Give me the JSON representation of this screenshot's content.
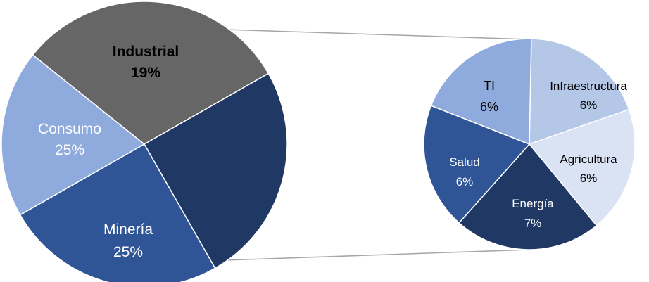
{
  "chart_data": {
    "type": "bar-of-pie",
    "main_pie": {
      "slices": [
        {
          "label": "Industrial",
          "value": 19,
          "value_label": "19%",
          "color": "#8FAADC",
          "text_color": "#000000",
          "bold": true
        },
        {
          "label": "",
          "value": 31,
          "value_label": "",
          "color": "#666666",
          "text_color": "#ffffff",
          "bold": false
        },
        {
          "label": "Minería",
          "value": 25,
          "value_label": "25%",
          "color": "#203864",
          "text_color": "#ffffff",
          "bold": false
        },
        {
          "label": "Consumo",
          "value": 25,
          "value_label": "25%",
          "color": "#2F5597",
          "text_color": "#ffffff",
          "bold": false
        }
      ]
    },
    "secondary_pie": {
      "slices": [
        {
          "label": "Infraestructura",
          "value": 6,
          "value_label": "6%",
          "color": "#B4C7E7",
          "text_color": "#000000",
          "bold": false
        },
        {
          "label": "Agricultura",
          "value": 6,
          "value_label": "6%",
          "color": "#DAE3F3",
          "text_color": "#000000",
          "bold": false
        },
        {
          "label": "Energía",
          "value": 7,
          "value_label": "7%",
          "color": "#203864",
          "text_color": "#ffffff",
          "bold": false
        },
        {
          "label": "Salud",
          "value": 6,
          "value_label": "6%",
          "color": "#2F5597",
          "text_color": "#ffffff",
          "bold": false
        },
        {
          "label": "TI",
          "value": 6,
          "value_label": "6%",
          "color": "#8FAADC",
          "text_color": "#000000",
          "bold": false
        }
      ]
    }
  }
}
